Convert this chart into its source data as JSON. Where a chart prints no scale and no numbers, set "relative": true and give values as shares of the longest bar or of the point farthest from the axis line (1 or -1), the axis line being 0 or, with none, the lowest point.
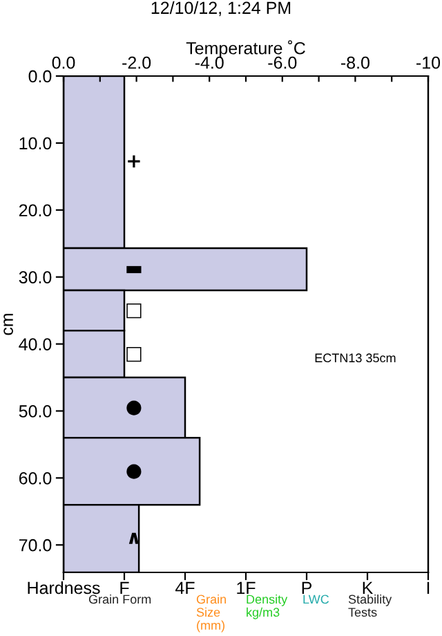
{
  "chart_data": {
    "type": "bar",
    "orientation": "horizontal",
    "relative": true,
    "title": "12/10/12, 1:24 PM",
    "x2label": "Temperature ˚C",
    "ylabel": "cm",
    "x": [
      12.85,
      28.85,
      35.0,
      41.5,
      49.5,
      59.0,
      69.05
    ],
    "series": [
      {
        "color": "#cbcbe6",
        "values": [
          0.25,
          1,
          0.25,
          0.25,
          0.5,
          0.56,
          0.31
        ]
      }
    ],
    "x2lim": [
      0,
      -10
    ],
    "x2ticks": [
      {
        "value": 0,
        "label": "0.0"
      },
      {
        "value": -1,
        "label": null
      },
      {
        "value": -2,
        "label": "-2.0"
      },
      {
        "value": -3,
        "label": null
      },
      {
        "value": -4,
        "label": "-4.0"
      },
      {
        "value": -5,
        "label": null
      },
      {
        "value": -6,
        "label": "-6.0"
      },
      {
        "value": -7,
        "label": null
      },
      {
        "value": -8,
        "label": "-8.0"
      },
      {
        "value": -9,
        "label": null
      },
      {
        "value": -10,
        "label": "-10"
      }
    ],
    "ylim": [
      74.1,
      0
    ],
    "yticks": [
      {
        "value": 0,
        "label": "0.0"
      },
      {
        "value": 10,
        "label": "10.0"
      },
      {
        "value": 20,
        "label": "20.0"
      },
      {
        "value": 30,
        "label": "30.0"
      },
      {
        "value": 40,
        "label": "40.0"
      },
      {
        "value": 50,
        "label": "50.0"
      },
      {
        "value": 60,
        "label": "60.0"
      },
      {
        "value": 70,
        "label": "70.0"
      }
    ],
    "grid": false,
    "annotations": [
      "+",
      "▬",
      "□",
      "□",
      "●",
      "●",
      "∧",
      "ECTN13 35cm",
      "Hardness",
      "F",
      "4F",
      "1F",
      "P",
      "K",
      "I",
      "Grain Form",
      "Grain\nSize\n(mm)",
      "Density\nkg/m3",
      "LWC",
      "Stability\nTests"
    ]
  }
}
